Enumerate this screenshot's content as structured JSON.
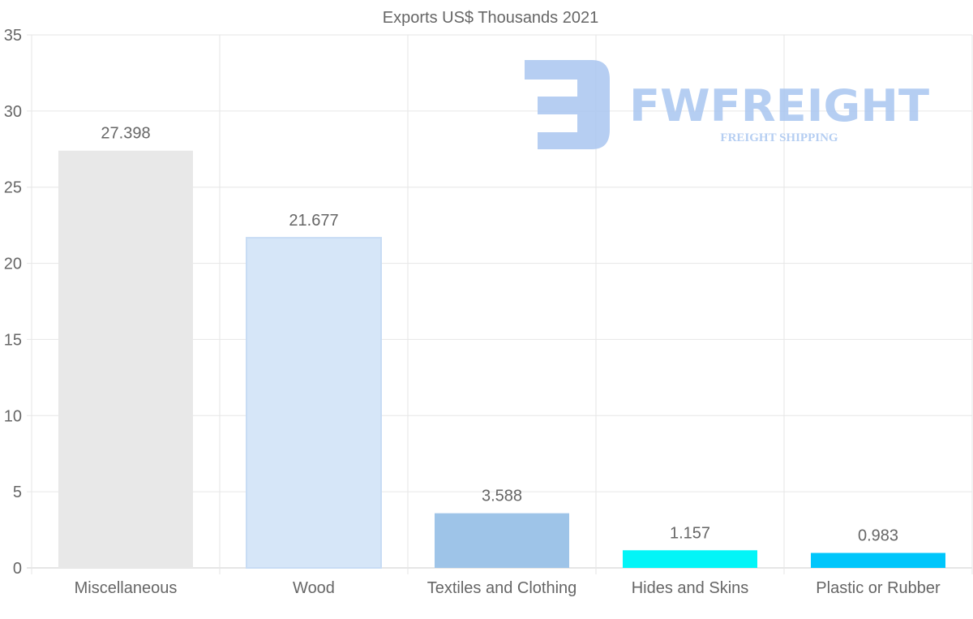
{
  "chart_data": {
    "type": "bar",
    "title": "Exports US$ Thousands 2021",
    "xlabel": "",
    "ylabel": "",
    "ylim": [
      0,
      35
    ],
    "yticks": [
      0,
      5,
      10,
      15,
      20,
      25,
      30,
      35
    ],
    "grid": true,
    "categories": [
      "Miscellaneous",
      "Wood",
      "Textiles and Clothing",
      "Hides and Skins",
      "Plastic or Rubber"
    ],
    "values": [
      27.398,
      21.677,
      3.588,
      1.157,
      0.983
    ],
    "value_labels": [
      "27.398",
      "21.677",
      "3.588",
      "1.157",
      "0.983"
    ],
    "colors": [
      "#e8e8e8",
      "#d6e6f8",
      "#9ec4e8",
      "#03f5f7",
      "#00c6fb"
    ]
  },
  "watermark": {
    "brand": "FWFREIGHT",
    "tagline": "FREIGHT SHIPPING",
    "color": "#a9c6f0"
  }
}
